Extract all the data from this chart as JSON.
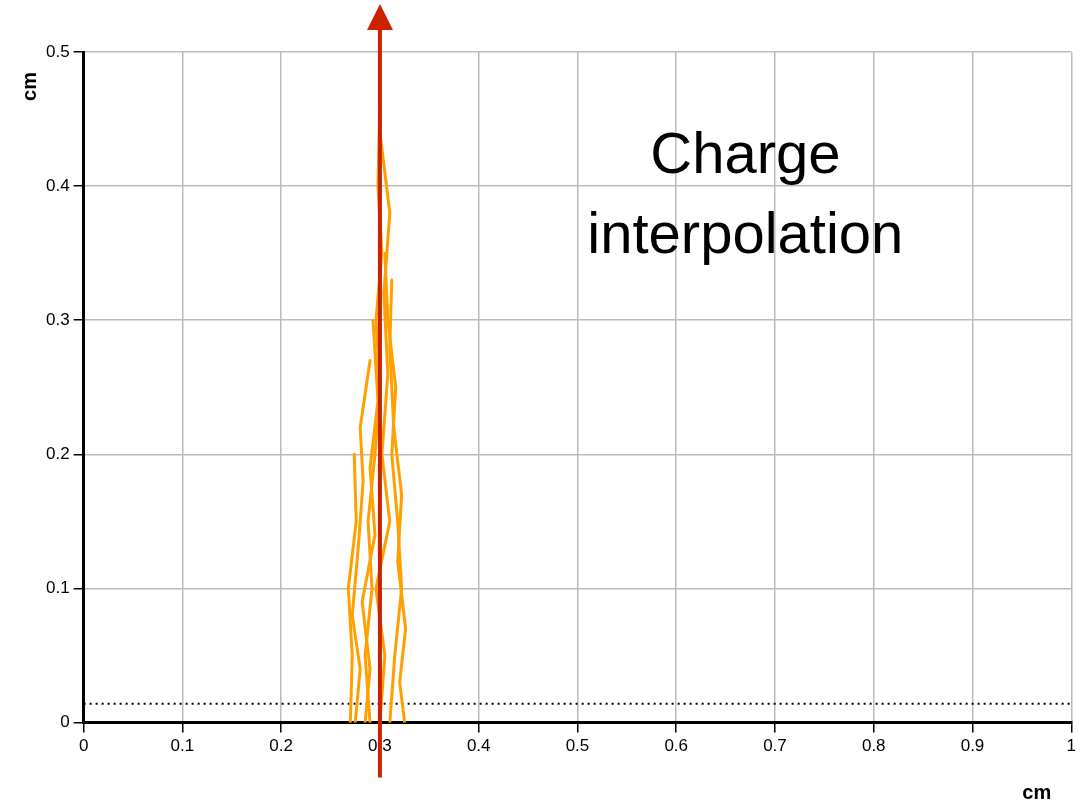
{
  "chart_data": {
    "type": "line",
    "xlabel": "cm",
    "ylabel": "cm",
    "annotations": [
      "Charge interpolation"
    ],
    "xlim": [
      0,
      1
    ],
    "xticks": [
      0,
      0.1,
      0.2,
      0.3,
      0.4,
      0.5,
      0.6,
      0.7,
      0.8,
      0.9,
      1
    ],
    "ylim": [
      0,
      0.5
    ],
    "yticks": [
      0,
      0.1,
      0.2,
      0.3,
      0.4,
      0.5
    ],
    "grid": true,
    "legend": false,
    "marker": "none",
    "line_style": "solid",
    "ref_lines": [
      {
        "axis": "x",
        "value": 0.3,
        "color": "#cc2200",
        "line_style": "solid"
      },
      {
        "axis": "y",
        "value": 0.014,
        "color": "#000000",
        "line_style": "dotted"
      }
    ],
    "series": [
      {
        "color": "#ffa000",
        "x": [
          0.29,
          0.285,
          0.292,
          0.288,
          0.295,
          0.3,
          0.296,
          0.302,
          0.298,
          0.3
        ],
        "values": [
          0,
          0.05,
          0.1,
          0.15,
          0.2,
          0.25,
          0.3,
          0.35,
          0.4,
          0.46
        ]
      },
      {
        "color": "#ffa000",
        "x": [
          0.31,
          0.315,
          0.322,
          0.318,
          0.312,
          0.316,
          0.308,
          0.305
        ],
        "values": [
          0,
          0.05,
          0.1,
          0.15,
          0.2,
          0.25,
          0.3,
          0.35
        ]
      },
      {
        "color": "#ffa000",
        "x": [
          0.275,
          0.28,
          0.272,
          0.278,
          0.283,
          0.28,
          0.29
        ],
        "values": [
          0,
          0.04,
          0.08,
          0.13,
          0.18,
          0.22,
          0.27
        ]
      },
      {
        "color": "#ffa000",
        "x": [
          0.325,
          0.32,
          0.326,
          0.318,
          0.322,
          0.314,
          0.31,
          0.312
        ],
        "values": [
          0,
          0.03,
          0.07,
          0.12,
          0.17,
          0.22,
          0.28,
          0.33
        ]
      },
      {
        "color": "#ffa000",
        "x": [
          0.3,
          0.305,
          0.296,
          0.31,
          0.302,
          0.308,
          0.304,
          0.31,
          0.3
        ],
        "values": [
          0,
          0.05,
          0.1,
          0.15,
          0.2,
          0.26,
          0.32,
          0.38,
          0.44
        ]
      },
      {
        "color": "#ffa000",
        "x": [
          0.285,
          0.29,
          0.282,
          0.295,
          0.29,
          0.298,
          0.293
        ],
        "values": [
          0,
          0.04,
          0.09,
          0.14,
          0.19,
          0.24,
          0.3
        ]
      },
      {
        "color": "#ffa000",
        "x": [
          0.27,
          0.272,
          0.268,
          0.276,
          0.274
        ],
        "values": [
          0,
          0.05,
          0.1,
          0.15,
          0.2
        ]
      }
    ]
  }
}
